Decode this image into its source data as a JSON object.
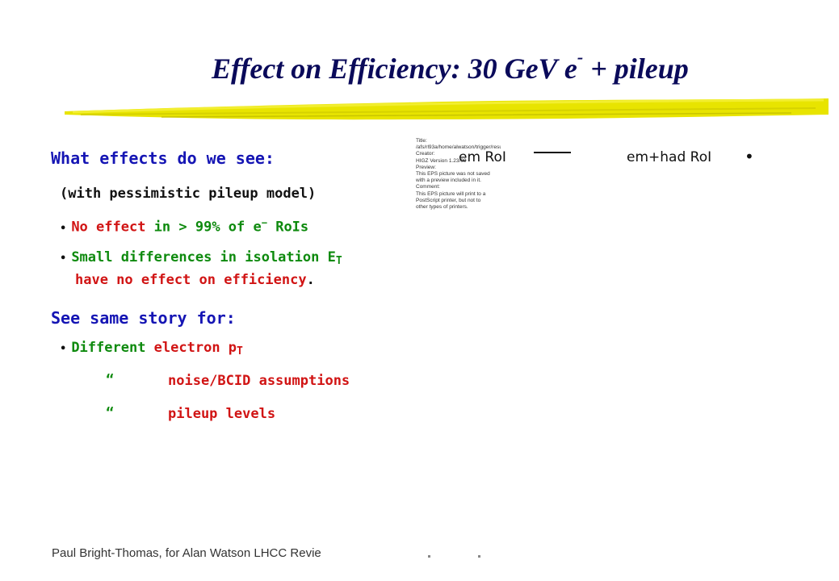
{
  "slide": {
    "title_main": "Effect on Efficiency: 30 GeV e",
    "title_sup": "-",
    "title_tail": " + pileup",
    "heading1": "What effects do we see:",
    "subheading": "(with pessimistic pileup model)",
    "bullet_symbol": "•",
    "b1_a": "No effect ",
    "b1_b": "in > 99% of e",
    "b1_sup": "−",
    "b1_c": " RoIs",
    "b2_a": "Small differences in isolation E",
    "b2_sub": "T",
    "b2_line2_a": "have no effect on efficiency",
    "b2_line2_b": ".",
    "heading2": "See same story for:",
    "b3_a": "Different ",
    "b3_b": "electron p",
    "b3_sub": "T",
    "ditto1": "“",
    "ditto1_text": "noise/BCID assumptions",
    "ditto2": "“",
    "ditto2_text": "pileup levels"
  },
  "eps_preview": {
    "lines": [
      "Title:",
      "/afs/rl93a/home/alwatson/trigger/results/PS/rol_iso",
      "Creator:",
      "HIGZ Version 1.23/09",
      "Preview:",
      "This EPS picture was not saved",
      "with a preview included in it.",
      "Comment:",
      "This EPS picture will print to a",
      "PostScript printer, but not to",
      "other types of printers."
    ]
  },
  "legend": {
    "em_label": "em RoI",
    "emhad_label": "em+had RoI",
    "emhad_marker": "•"
  },
  "footer": {
    "text": "Paul Bright-Thomas, for Alan Watson        LHCC Revie"
  }
}
